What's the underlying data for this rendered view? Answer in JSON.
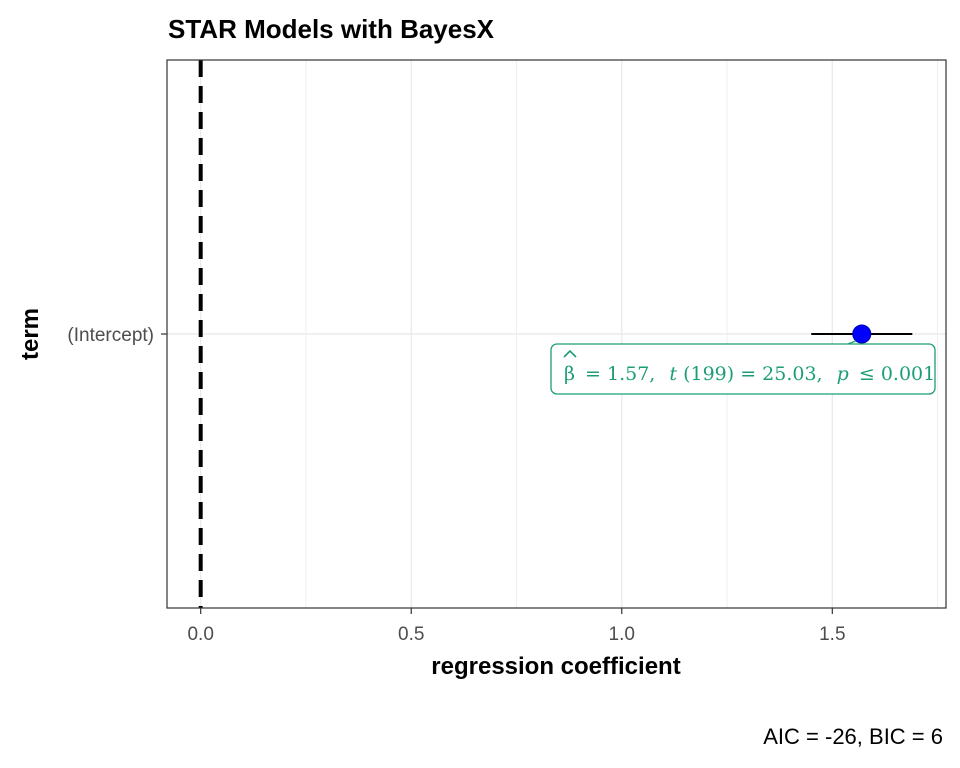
{
  "chart_data": {
    "type": "scatter",
    "title": "STAR Models with BayesX",
    "xlabel": "regression coefficient",
    "ylabel": "term",
    "caption": "AIC = -26, BIC = 6",
    "xlim": [
      -0.08,
      1.77
    ],
    "x_ticks": [
      0.0,
      0.5,
      1.0,
      1.5
    ],
    "x_tick_labels": [
      "0.0",
      "0.5",
      "1.0",
      "1.5"
    ],
    "x_minor_ticks": [
      0.25,
      0.75,
      1.25,
      1.75
    ],
    "categories": [
      "(Intercept)"
    ],
    "points": [
      {
        "term": "(Intercept)",
        "estimate": 1.57,
        "conf_low": 1.45,
        "conf_high": 1.69
      }
    ],
    "reference_line": {
      "x": 0,
      "style": "dashed"
    },
    "annotation": {
      "beta_symbol": "β",
      "beta_value": "= 1.57,",
      "t_symbol": "t",
      "t_df": "(199) = 25.03,",
      "p_symbol": "p",
      "p_value": "≤ 0.001"
    },
    "grid": true,
    "legend": "none",
    "colors": {
      "point": "#0000ff",
      "errorbar": "#000000",
      "annotation": "#1b9e77",
      "panel_border": "#333333",
      "grid": "#ebebeb"
    }
  }
}
